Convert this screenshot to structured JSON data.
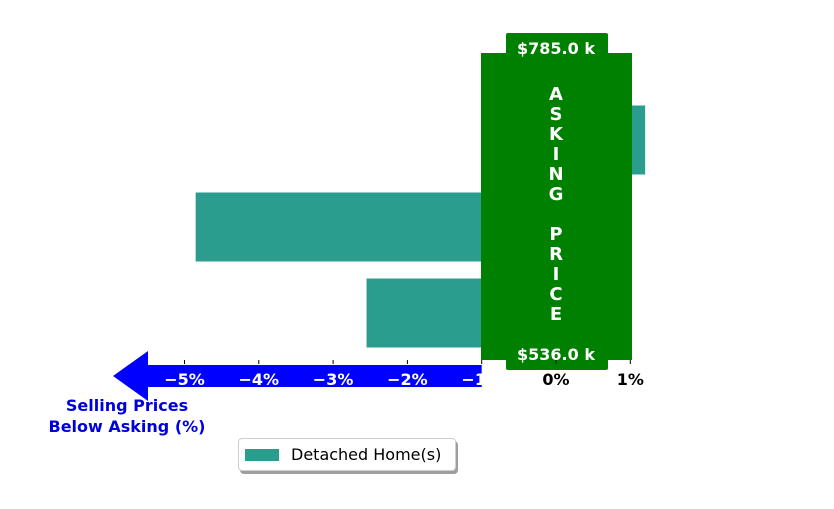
{
  "chart_data": {
    "type": "bar",
    "orientation": "horizontal",
    "series": [
      {
        "name": "Detached Home(s)",
        "color": "#2a9d8f",
        "values": [
          1.2,
          -4.85,
          -2.55
        ]
      }
    ],
    "xlim": [
      -6.0,
      1.0
    ],
    "xticks": [
      -5,
      -4,
      -3,
      -2,
      -1,
      0,
      1
    ],
    "xtick_labels": [
      "−5%",
      "−4%",
      "−3%",
      "−2%",
      "−1%",
      "0%",
      "1%"
    ],
    "xlabel": "Selling Prices\nBelow Asking (%)",
    "asking_price_panel": {
      "text": "ASKING PRICE",
      "top_label": "$785.0 k",
      "bottom_label": "$536.0 k",
      "color": "#008000"
    },
    "arrow_color": "#0000ff",
    "label_color": "#0000dd",
    "legend": {
      "position": "bottom-center"
    },
    "grid": false
  }
}
